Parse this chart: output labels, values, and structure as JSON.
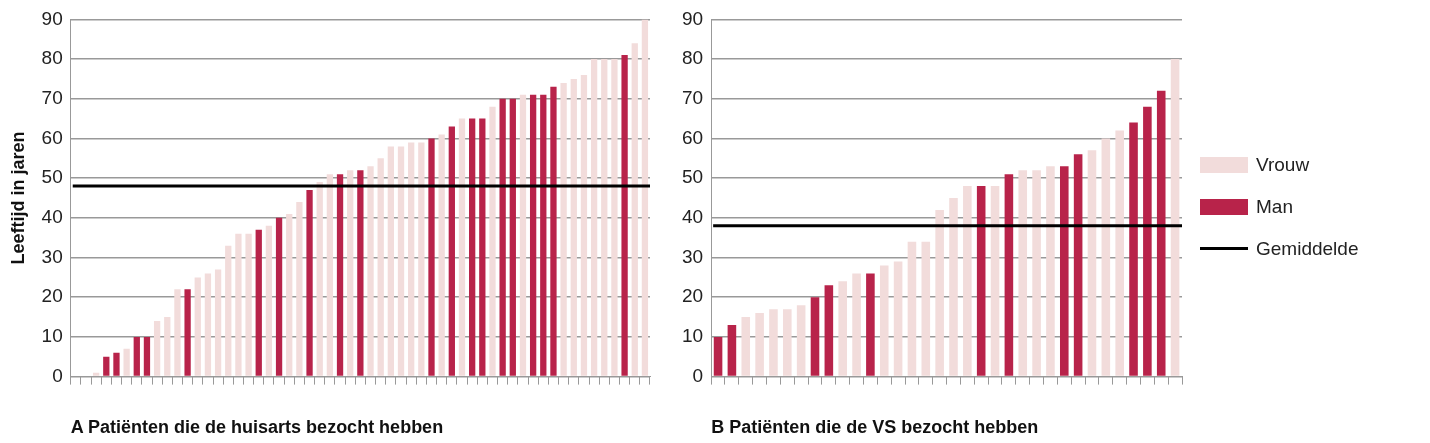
{
  "chart_data": [
    {
      "type": "bar",
      "xlabel": "A Patiënten die de huisarts bezocht hebben",
      "ylabel": "Leeftijd in jaren",
      "stacked": true,
      "grid": "y",
      "legend": false,
      "categories": [
        null,
        null,
        null,
        null,
        null,
        null,
        null,
        null,
        null,
        null,
        null,
        null,
        null,
        null,
        null,
        null,
        null,
        null,
        null,
        null,
        null,
        null,
        null,
        null,
        null,
        null,
        null,
        null,
        null,
        null,
        null,
        null,
        null,
        null,
        null,
        null,
        null,
        null,
        null,
        null,
        null,
        null,
        null,
        null,
        null,
        null,
        null,
        null,
        null,
        null,
        null,
        null,
        null,
        null,
        null,
        null,
        null
      ],
      "series": [
        {
          "color": "#f2dcdb",
          "values": [
            null,
            null,
            1,
            null,
            null,
            7,
            null,
            null,
            14,
            15,
            22,
            null,
            25,
            26,
            27,
            33,
            36,
            36,
            null,
            38,
            null,
            41,
            44,
            null,
            49,
            51,
            null,
            52,
            null,
            53,
            55,
            58,
            58,
            59,
            59,
            null,
            61,
            null,
            65,
            null,
            null,
            68,
            null,
            null,
            71,
            null,
            null,
            null,
            74,
            75,
            76,
            80,
            80,
            80,
            null,
            84,
            90
          ]
        },
        {
          "color": "#b8234a",
          "values": [
            null,
            null,
            null,
            5,
            6,
            null,
            10,
            10,
            null,
            null,
            null,
            22,
            null,
            null,
            null,
            null,
            null,
            null,
            37,
            null,
            40,
            null,
            null,
            47,
            null,
            null,
            51,
            null,
            52,
            null,
            null,
            null,
            null,
            null,
            null,
            60,
            null,
            63,
            null,
            65,
            65,
            null,
            70,
            70,
            null,
            71,
            71,
            73,
            null,
            null,
            null,
            null,
            null,
            null,
            81,
            null,
            null
          ]
        }
      ],
      "ylim": [
        0,
        90
      ],
      "yticks": [
        0,
        10,
        20,
        30,
        40,
        50,
        60,
        70,
        80,
        90
      ],
      "ref_lines": [
        {
          "axis": "y",
          "value": 48,
          "color": "#000000"
        }
      ]
    },
    {
      "type": "bar",
      "xlabel": "B Patiënten die de VS bezocht hebben",
      "stacked": true,
      "grid": "y",
      "legend": "right",
      "categories": [
        null,
        null,
        null,
        null,
        null,
        null,
        null,
        null,
        null,
        null,
        null,
        null,
        null,
        null,
        null,
        null,
        null,
        null,
        null,
        null,
        null,
        null,
        null,
        null,
        null,
        null,
        null,
        null,
        null,
        null,
        null,
        null,
        null,
        null
      ],
      "series": [
        {
          "name": "Vrouw",
          "color": "#f2dcdb",
          "values": [
            null,
            null,
            15,
            16,
            17,
            17,
            18,
            null,
            null,
            24,
            26,
            null,
            28,
            29,
            34,
            34,
            42,
            45,
            48,
            null,
            48,
            null,
            52,
            52,
            53,
            null,
            null,
            57,
            60,
            62,
            null,
            null,
            null,
            80
          ]
        },
        {
          "name": "Man",
          "color": "#b8234a",
          "values": [
            10,
            13,
            null,
            null,
            null,
            null,
            null,
            20,
            23,
            null,
            null,
            26,
            null,
            null,
            null,
            null,
            null,
            null,
            null,
            48,
            null,
            51,
            null,
            null,
            null,
            53,
            56,
            null,
            null,
            null,
            64,
            68,
            72,
            null
          ]
        }
      ],
      "ylim": [
        0,
        90
      ],
      "yticks": [
        0,
        10,
        20,
        30,
        40,
        50,
        60,
        70,
        80,
        90
      ],
      "ref_lines": [
        {
          "axis": "y",
          "value": 38,
          "label": "Gemiddelde",
          "color": "#000000"
        }
      ]
    }
  ]
}
